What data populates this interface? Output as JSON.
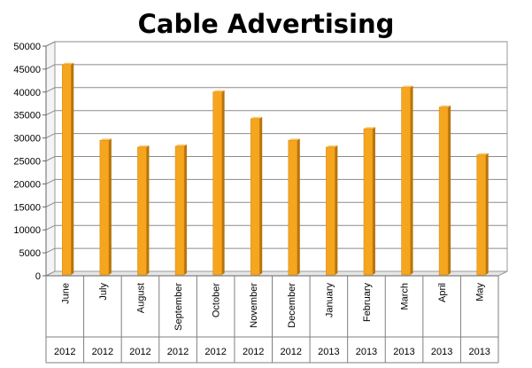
{
  "chart_data": {
    "type": "bar",
    "title": "Cable Advertising",
    "xlabel": "",
    "ylabel": "",
    "categories": [
      "June",
      "July",
      "August",
      "September",
      "October",
      "November",
      "December",
      "January",
      "February",
      "March",
      "April",
      "May"
    ],
    "years": [
      "2012",
      "2012",
      "2012",
      "2012",
      "2012",
      "2012",
      "2012",
      "2013",
      "2013",
      "2013",
      "2013",
      "2013"
    ],
    "values": [
      46000,
      29500,
      28000,
      28200,
      40000,
      34200,
      29500,
      28000,
      32000,
      41000,
      36700,
      26300
    ],
    "ylim": [
      0,
      50000
    ],
    "yticks": [
      "0",
      "5000",
      "10000",
      "15000",
      "20000",
      "25000",
      "30000",
      "35000",
      "40000",
      "45000",
      "50000"
    ],
    "grid": true,
    "legend": "none",
    "bar_color": "#F6A51E",
    "bar_side_color": "#B8740A",
    "bar_top_color": "#FBC770"
  }
}
